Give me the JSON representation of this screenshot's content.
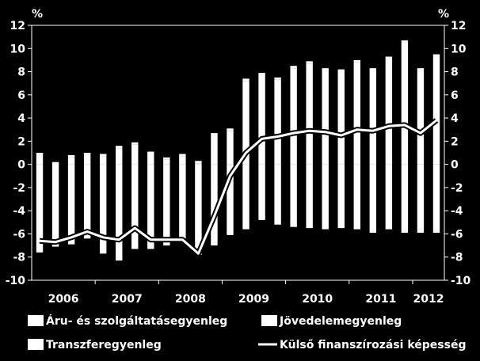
{
  "chart_data": {
    "type": "bar",
    "title": "",
    "unit_left": "%",
    "unit_right": "%",
    "ylim": [
      -10,
      12
    ],
    "yticks": [
      -10,
      -8,
      -6,
      -4,
      -2,
      0,
      2,
      4,
      6,
      8,
      10,
      12
    ],
    "year_labels": [
      "2006",
      "2007",
      "2008",
      "2009",
      "2010",
      "2011",
      "2012"
    ],
    "categories": [
      "2006Q1",
      "2006Q2",
      "2006Q3",
      "2006Q4",
      "2007Q1",
      "2007Q2",
      "2007Q3",
      "2007Q4",
      "2008Q1",
      "2008Q2",
      "2008Q3",
      "2008Q4",
      "2009Q1",
      "2009Q2",
      "2009Q3",
      "2009Q4",
      "2010Q1",
      "2010Q2",
      "2010Q3",
      "2010Q4",
      "2011Q1",
      "2011Q2",
      "2011Q3",
      "2011Q4",
      "2012Q1",
      "2012Q2"
    ],
    "series": [
      {
        "name": "Áru- és szolgáltatásegyenleg",
        "kind": "bar",
        "color": "#ffffff",
        "values": [
          0.8,
          0.0,
          0.6,
          0.8,
          0.7,
          1.4,
          1.7,
          0.9,
          0.4,
          0.7,
          0.1,
          2.5,
          2.9,
          7.2,
          7.7,
          7.3,
          8.3,
          8.7,
          8.1,
          8.0,
          8.8,
          8.1,
          9.1,
          10.5,
          8.1,
          9.3
        ]
      },
      {
        "name": "Jövedelemegyenleg",
        "kind": "bar",
        "color": "#ffffff",
        "values": [
          -7.6,
          -7.1,
          -6.9,
          -6.4,
          -7.7,
          -8.3,
          -7.3,
          -7.3,
          -7.0,
          -6.7,
          -7.8,
          -7.0,
          -6.1,
          -5.6,
          -4.8,
          -5.2,
          -5.4,
          -5.5,
          -5.6,
          -5.5,
          -5.6,
          -5.9,
          -5.6,
          -5.9,
          -5.9,
          -5.9
        ]
      },
      {
        "name": "Transzferegyenleg",
        "kind": "bar",
        "color": "#ffffff",
        "values": [
          0.2,
          0.2,
          0.2,
          0.2,
          0.2,
          0.2,
          0.2,
          0.2,
          0.2,
          0.2,
          0.2,
          0.2,
          0.2,
          0.2,
          0.2,
          0.2,
          0.2,
          0.2,
          0.2,
          0.2,
          0.2,
          0.2,
          0.2,
          0.2,
          0.2,
          0.2
        ]
      },
      {
        "name": "Külső finanszírozási képesség",
        "kind": "line",
        "color": "#ffffff",
        "values": [
          -6.6,
          -6.7,
          -6.3,
          -5.8,
          -6.3,
          -6.5,
          -5.5,
          -6.5,
          -6.5,
          -6.5,
          -7.7,
          -4.5,
          -1.0,
          1.0,
          2.2,
          2.4,
          2.7,
          2.9,
          2.8,
          2.5,
          3.0,
          2.9,
          3.3,
          3.4,
          2.7,
          3.8
        ]
      }
    ],
    "legend": [
      {
        "label": "Áru- és szolgáltatásegyenleg",
        "kind": "bar"
      },
      {
        "label": "Jövedelemegyenleg",
        "kind": "bar"
      },
      {
        "label": "Transzferegyenleg",
        "kind": "bar"
      },
      {
        "label": "Külső finanszírozási képesség",
        "kind": "line"
      }
    ],
    "grid": false,
    "legend_position": "bottom"
  }
}
